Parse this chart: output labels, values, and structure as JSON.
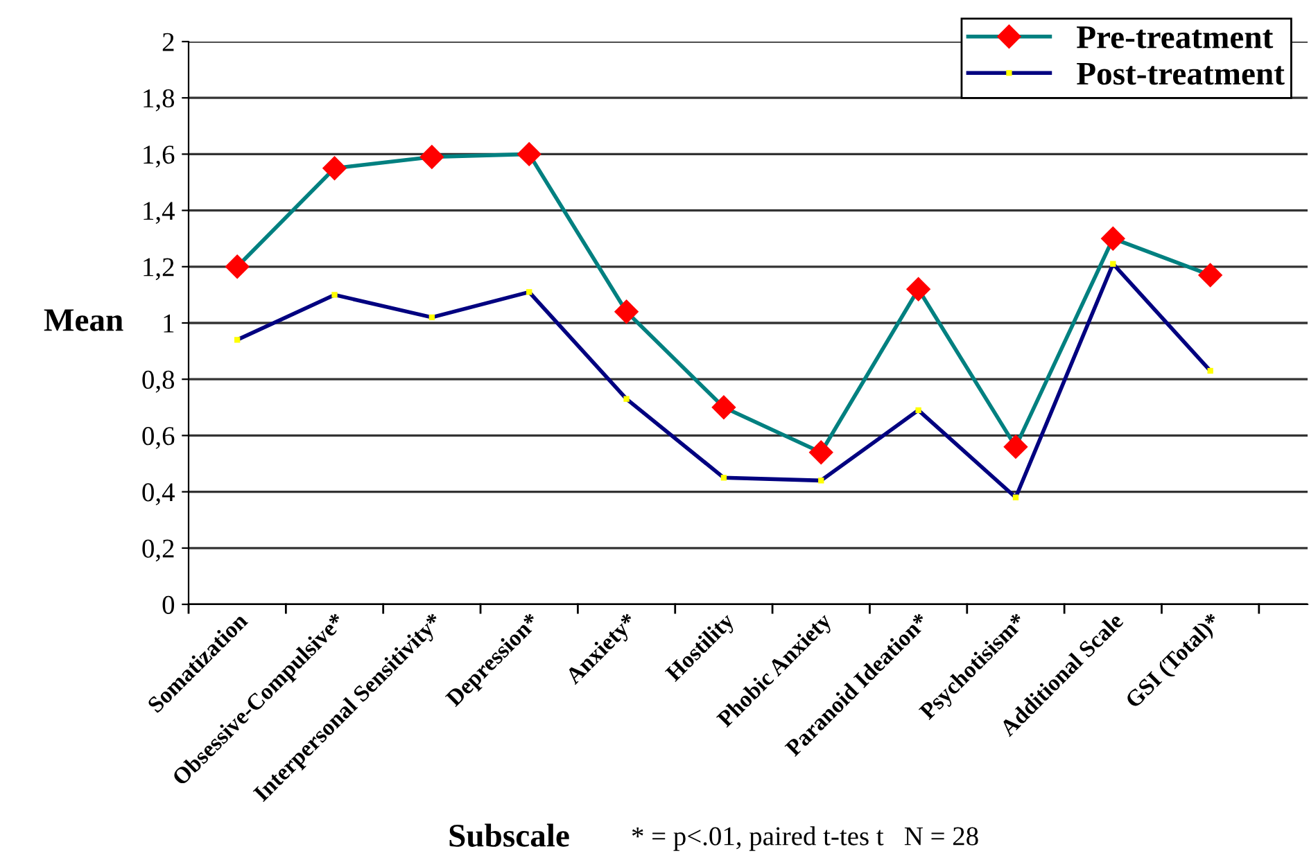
{
  "chart_data": {
    "type": "line",
    "categories": [
      "Somatization",
      "Obsessive-Compulsive*",
      "Interpersonal Sensitivity*",
      "Depression*",
      "Anxiety*",
      "Hostility",
      "Phobic Anxiety",
      "Paranoid Ideation*",
      "Psychotisism*",
      "Additional Scale",
      "GSI (Total)*"
    ],
    "series": [
      {
        "name": "Pre-treatment",
        "color": "#008080",
        "marker": "diamond",
        "colors": [
          "#ff0000",
          "#ff0000",
          "#ff0000",
          "#ff0000",
          "#ff0000",
          "#ff0000",
          "#ff0000",
          "#ff0000",
          "#ff0000",
          "#ff0000",
          "#ff0000"
        ],
        "values": [
          1.2,
          1.55,
          1.59,
          1.6,
          1.04,
          0.7,
          0.54,
          1.12,
          0.56,
          1.3,
          1.17
        ]
      },
      {
        "name": "Post-treatment",
        "color": "#000080",
        "marker": "square",
        "colors": [
          "#ffff00",
          "#ffff00",
          "#ffff00",
          "#ffff00",
          "#ffff00",
          "#ffff00",
          "#ffff00",
          "#ffff00",
          "#ffff00",
          "#ffff00",
          "#ffff00"
        ],
        "values": [
          0.94,
          1.1,
          1.02,
          1.11,
          0.73,
          0.45,
          0.44,
          0.69,
          0.38,
          1.21,
          0.83
        ]
      }
    ],
    "ylabel": "Mean",
    "xlabel": "Subscale",
    "annotations": [
      "* = p<.01, paired t-tes t   N = 28"
    ],
    "ylim": [
      0,
      2
    ],
    "yticks": [
      0,
      {
        "value": 0.2,
        "label": "0,2"
      },
      {
        "value": 0.4,
        "label": "0,4"
      },
      {
        "value": 0.6,
        "label": "0,6"
      },
      {
        "value": 0.8,
        "label": "0,8"
      },
      1,
      {
        "value": 1.2,
        "label": "1,2"
      },
      {
        "value": 1.4,
        "label": "1,4"
      },
      {
        "value": 1.6,
        "label": "1,6"
      },
      {
        "value": 1.8,
        "label": "1,8"
      },
      2
    ],
    "grid": "y",
    "legend": "top right",
    "line_style": "solid"
  }
}
